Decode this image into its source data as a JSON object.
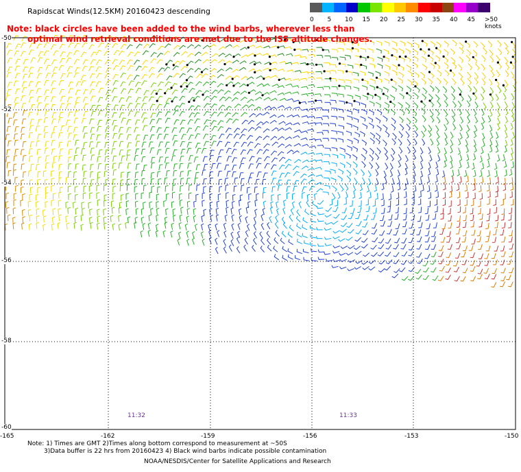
{
  "title": "Rapidscat Winds(12.5KM) 20160423 descending",
  "note": {
    "line1": "Note: black circles have been added to the wind barbs, wherever less than",
    "line2": "optimal wind retrieval conditions are met due to the ISS altitude changes."
  },
  "colorbar": {
    "labels": [
      "0",
      "5",
      "10",
      "15",
      "20",
      "25",
      "30",
      "35",
      "40",
      "45",
      ">50 knots"
    ],
    "colors": [
      "#5a5a5a",
      "#00b4ff",
      "#0064ff",
      "#0000c8",
      "#00c800",
      "#78e600",
      "#ffff00",
      "#ffc800",
      "#ff8c00",
      "#ff0000",
      "#c80000",
      "#8b4513",
      "#ff00ff",
      "#9600c8",
      "#3c006e"
    ]
  },
  "map": {
    "lat_ticks": [
      "-50",
      "-52",
      "-54",
      "-56",
      "-58",
      "-60"
    ],
    "lon_ticks": [
      "-165",
      "-162",
      "-159",
      "-156",
      "-153",
      "-150"
    ],
    "lat_range": [
      -60,
      -50
    ],
    "lon_range": [
      -165,
      -150
    ],
    "times": [
      "11:32",
      "11:33"
    ]
  },
  "footer": {
    "line1": "Note: 1) Times are GMT 2)Times along bottom correspond to measurement at ~50S",
    "line2": "3)Data buffer is 22 hrs from 20160423 4) Black wind barbs indicate possible contamination",
    "line3": "NOAA/NESDIS/Center for Satellite Applications and Research"
  }
}
